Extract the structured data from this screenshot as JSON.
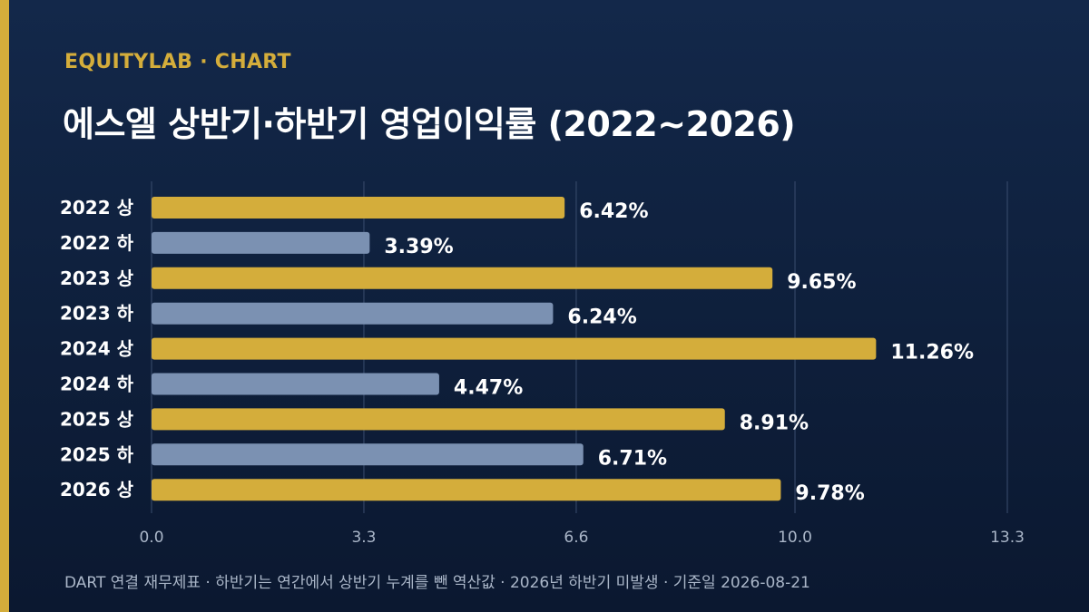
{
  "brand": "EQUITYLAB · CHART",
  "title": "에스엘 상반기·하반기 영업이익률 (2022~2026)",
  "footer": "DART 연결 재무제표 · 하반기는 연간에서 상반기 누계를 뺀 역산값 · 2026년 하반기 미발생 · 기준일 2026-08-21",
  "colors": {
    "accent": "#d4ad3b",
    "first_half": "#d4ad3b",
    "second_half": "#7b91b2",
    "background": "#0f2140"
  },
  "chart_data": {
    "type": "bar",
    "orientation": "horizontal",
    "categories": [
      "2022 상",
      "2022 하",
      "2023 상",
      "2023 하",
      "2024 상",
      "2024 하",
      "2025 상",
      "2025 하",
      "2026 상"
    ],
    "values": [
      6.42,
      3.39,
      9.65,
      6.24,
      11.26,
      4.47,
      8.91,
      6.71,
      9.78
    ],
    "value_labels": [
      "6.42%",
      "3.39%",
      "9.65%",
      "6.24%",
      "11.26%",
      "4.47%",
      "8.91%",
      "6.71%",
      "9.78%"
    ],
    "bar_colors": [
      "#d4ad3b",
      "#7b91b2",
      "#d4ad3b",
      "#7b91b2",
      "#d4ad3b",
      "#7b91b2",
      "#d4ad3b",
      "#7b91b2",
      "#d4ad3b"
    ],
    "x_ticks": [
      "0.0",
      "3.3",
      "6.6",
      "10.0",
      "13.3"
    ],
    "xlim": [
      0,
      13.3
    ],
    "grid": true,
    "xlabel": "",
    "ylabel": ""
  }
}
